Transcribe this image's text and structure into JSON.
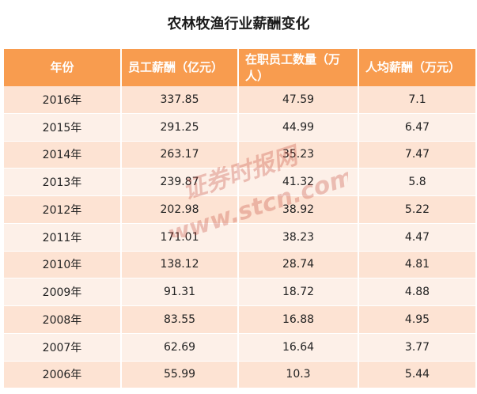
{
  "title": "农林牧渔行业薪酬变化",
  "table": {
    "headers": [
      "年份",
      "员工薪酬（亿元）",
      "在职员工数量（万人）",
      "人均薪酬（万元）"
    ],
    "rows": [
      [
        "2016年",
        "337.85",
        "47.59",
        "7.1"
      ],
      [
        "2015年",
        "291.25",
        "44.99",
        "6.47"
      ],
      [
        "2014年",
        "263.17",
        "35.23",
        "7.47"
      ],
      [
        "2013年",
        "239.87",
        "41.32",
        "5.8"
      ],
      [
        "2012年",
        "202.98",
        "38.92",
        "5.22"
      ],
      [
        "2011年",
        "171.01",
        "38.23",
        "4.47"
      ],
      [
        "2010年",
        "138.12",
        "28.74",
        "4.81"
      ],
      [
        "2009年",
        "91.31",
        "18.72",
        "4.88"
      ],
      [
        "2008年",
        "83.55",
        "16.88",
        "4.95"
      ],
      [
        "2007年",
        "62.69",
        "16.64",
        "3.77"
      ],
      [
        "2006年",
        "55.99",
        "10.3",
        "5.44"
      ]
    ]
  },
  "watermark": {
    "text_cn": "证券时报网",
    "text_url": "www.stcn.com",
    "color": "#c0392b"
  },
  "colors": {
    "header": "#f89c4f",
    "row_odd": "#fde3d3",
    "row_even": "#fdf0e8"
  }
}
